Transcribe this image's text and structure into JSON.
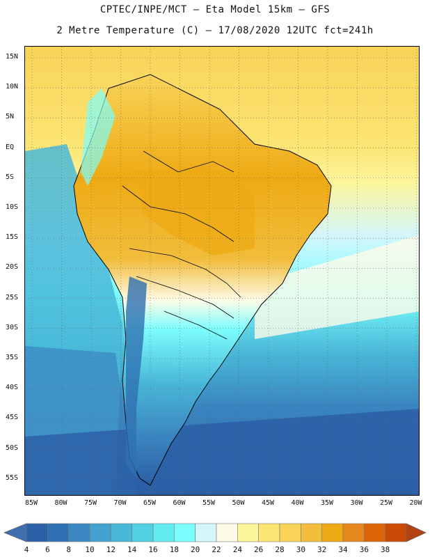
{
  "header": {
    "title_line1": "CPTEC/INPE/MCT –  Eta Model 15km – GFS",
    "title_line2": "2 Metre Temperature (C) – 17/08/2020 12UTC fct=241h"
  },
  "axes": {
    "lat_labels": [
      "15N",
      "10N",
      "5N",
      "EQ",
      "5S",
      "10S",
      "15S",
      "20S",
      "25S",
      "30S",
      "35S",
      "40S",
      "45S",
      "50S",
      "55S"
    ],
    "lon_labels": [
      "85W",
      "80W",
      "75W",
      "70W",
      "65W",
      "60W",
      "55W",
      "50W",
      "45W",
      "40W",
      "35W",
      "30W",
      "25W",
      "20W"
    ]
  },
  "colorbar": {
    "ticks": [
      "4",
      "6",
      "8",
      "10",
      "12",
      "14",
      "16",
      "18",
      "20",
      "22",
      "24",
      "26",
      "28",
      "30",
      "32",
      "34",
      "36",
      "38"
    ],
    "colors": [
      "#2b5fa6",
      "#2f70b2",
      "#3a86c0",
      "#43a1cf",
      "#49b8d8",
      "#51cfe3",
      "#62ebef",
      "#7cfdfd",
      "#d3f6fb",
      "#fefbe8",
      "#fdf59a",
      "#fce573",
      "#f8d358",
      "#f1bd3b",
      "#eeaa14",
      "#e6871e",
      "#db6506",
      "#c94b05"
    ],
    "low_arrow_color": "#3f6fb0",
    "high_arrow_color": "#b34111"
  },
  "map": {
    "ocean_cold": "#2b5fa6",
    "ocean_mid": "#49b8d8",
    "ocean_warm": "#fdf59a",
    "tropical": "#f8d358",
    "hot": "#eeaa14"
  }
}
